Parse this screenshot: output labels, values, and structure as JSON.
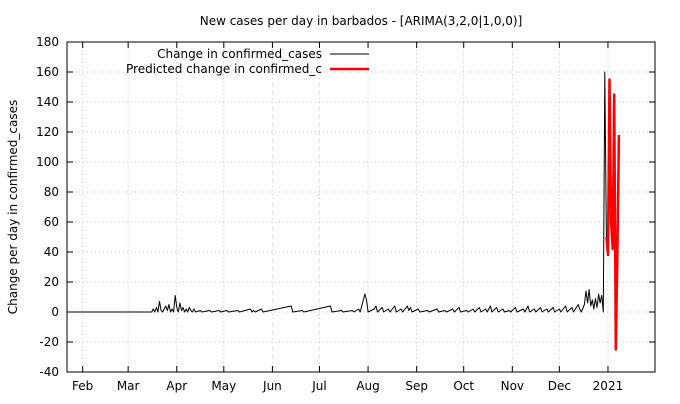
{
  "chart_data": {
    "type": "line",
    "title": "New cases per day in barbados -  [ARIMA(3,2,0|1,0,0)]",
    "xlabel": "",
    "ylabel": "Change per day in confirmed_cases",
    "ylim": [
      -40,
      180
    ],
    "yticks": [
      -40,
      -20,
      0,
      20,
      40,
      60,
      80,
      100,
      120,
      140,
      160,
      180
    ],
    "xlim": [
      "2020-01-22",
      "2021-01-31"
    ],
    "xticks": [
      {
        "label": "Feb",
        "date": "2020-02-01"
      },
      {
        "label": "Mar",
        "date": "2020-03-01"
      },
      {
        "label": "Apr",
        "date": "2020-04-01"
      },
      {
        "label": "May",
        "date": "2020-05-01"
      },
      {
        "label": "Jun",
        "date": "2020-06-01"
      },
      {
        "label": "Jul",
        "date": "2020-07-01"
      },
      {
        "label": "Aug",
        "date": "2020-08-01"
      },
      {
        "label": "Sep",
        "date": "2020-09-01"
      },
      {
        "label": "Oct",
        "date": "2020-10-01"
      },
      {
        "label": "Nov",
        "date": "2020-11-01"
      },
      {
        "label": "Dec",
        "date": "2020-12-01"
      },
      {
        "label": "2021",
        "date": "2021-01-01"
      }
    ],
    "grid": true,
    "legend_position": "top-left",
    "series": [
      {
        "name": "Change in confirmed_cases",
        "color": "#000000",
        "points": [
          [
            "2020-01-22",
            0
          ],
          [
            "2020-03-16",
            0
          ],
          [
            "2020-03-17",
            2
          ],
          [
            "2020-03-18",
            0
          ],
          [
            "2020-03-19",
            3
          ],
          [
            "2020-03-20",
            0
          ],
          [
            "2020-03-21",
            7
          ],
          [
            "2020-03-22",
            1
          ],
          [
            "2020-03-23",
            0
          ],
          [
            "2020-03-24",
            2
          ],
          [
            "2020-03-25",
            4
          ],
          [
            "2020-03-26",
            1
          ],
          [
            "2020-03-27",
            5
          ],
          [
            "2020-03-28",
            0
          ],
          [
            "2020-03-29",
            2
          ],
          [
            "2020-03-30",
            0
          ],
          [
            "2020-03-31",
            11
          ],
          [
            "2020-04-01",
            3
          ],
          [
            "2020-04-02",
            0
          ],
          [
            "2020-04-03",
            6
          ],
          [
            "2020-04-04",
            1
          ],
          [
            "2020-04-05",
            3
          ],
          [
            "2020-04-06",
            0
          ],
          [
            "2020-04-07",
            2
          ],
          [
            "2020-04-08",
            0
          ],
          [
            "2020-04-09",
            3
          ],
          [
            "2020-04-10",
            1
          ],
          [
            "2020-04-11",
            0
          ],
          [
            "2020-04-12",
            2
          ],
          [
            "2020-04-13",
            0
          ],
          [
            "2020-04-16",
            1
          ],
          [
            "2020-04-17",
            0
          ],
          [
            "2020-04-22",
            1
          ],
          [
            "2020-04-23",
            0
          ],
          [
            "2020-04-28",
            1
          ],
          [
            "2020-04-29",
            0
          ],
          [
            "2020-05-03",
            1
          ],
          [
            "2020-05-04",
            0
          ],
          [
            "2020-05-10",
            1
          ],
          [
            "2020-05-11",
            0
          ],
          [
            "2020-05-18",
            2
          ],
          [
            "2020-05-19",
            0
          ],
          [
            "2020-05-20",
            1
          ],
          [
            "2020-05-21",
            0
          ],
          [
            "2020-05-25",
            2
          ],
          [
            "2020-05-26",
            0
          ],
          [
            "2020-06-13",
            4
          ],
          [
            "2020-06-14",
            0
          ],
          [
            "2020-06-20",
            1
          ],
          [
            "2020-06-21",
            0
          ],
          [
            "2020-07-08",
            4
          ],
          [
            "2020-07-09",
            0
          ],
          [
            "2020-07-15",
            1
          ],
          [
            "2020-07-16",
            0
          ],
          [
            "2020-07-22",
            1
          ],
          [
            "2020-07-23",
            0
          ],
          [
            "2020-07-26",
            2
          ],
          [
            "2020-07-27",
            0
          ],
          [
            "2020-07-30",
            12
          ],
          [
            "2020-07-31",
            8
          ],
          [
            "2020-08-01",
            0
          ],
          [
            "2020-08-05",
            2
          ],
          [
            "2020-08-06",
            4
          ],
          [
            "2020-08-07",
            0
          ],
          [
            "2020-08-10",
            3
          ],
          [
            "2020-08-11",
            0
          ],
          [
            "2020-08-14",
            2
          ],
          [
            "2020-08-15",
            0
          ],
          [
            "2020-08-18",
            4
          ],
          [
            "2020-08-19",
            0
          ],
          [
            "2020-08-22",
            2
          ],
          [
            "2020-08-23",
            0
          ],
          [
            "2020-08-26",
            4
          ],
          [
            "2020-08-27",
            1
          ],
          [
            "2020-08-28",
            3
          ],
          [
            "2020-08-29",
            0
          ],
          [
            "2020-09-02",
            2
          ],
          [
            "2020-09-03",
            0
          ],
          [
            "2020-09-08",
            1
          ],
          [
            "2020-09-09",
            0
          ],
          [
            "2020-09-14",
            2
          ],
          [
            "2020-09-15",
            0
          ],
          [
            "2020-09-19",
            1
          ],
          [
            "2020-09-20",
            0
          ],
          [
            "2020-09-24",
            2
          ],
          [
            "2020-09-25",
            0
          ],
          [
            "2020-09-28",
            3
          ],
          [
            "2020-09-29",
            0
          ],
          [
            "2020-10-03",
            1
          ],
          [
            "2020-10-04",
            0
          ],
          [
            "2020-10-07",
            2
          ],
          [
            "2020-10-08",
            0
          ],
          [
            "2020-10-11",
            3
          ],
          [
            "2020-10-12",
            0
          ],
          [
            "2020-10-15",
            2
          ],
          [
            "2020-10-16",
            0
          ],
          [
            "2020-10-18",
            4
          ],
          [
            "2020-10-19",
            0
          ],
          [
            "2020-10-22",
            3
          ],
          [
            "2020-10-23",
            0
          ],
          [
            "2020-10-26",
            2
          ],
          [
            "2020-10-27",
            0
          ],
          [
            "2020-10-30",
            1
          ],
          [
            "2020-10-31",
            0
          ],
          [
            "2020-11-03",
            3
          ],
          [
            "2020-11-04",
            0
          ],
          [
            "2020-11-08",
            2
          ],
          [
            "2020-11-09",
            0
          ],
          [
            "2020-11-11",
            4
          ],
          [
            "2020-11-12",
            0
          ],
          [
            "2020-11-15",
            2
          ],
          [
            "2020-11-16",
            0
          ],
          [
            "2020-11-19",
            3
          ],
          [
            "2020-11-20",
            0
          ],
          [
            "2020-11-23",
            2
          ],
          [
            "2020-11-24",
            0
          ],
          [
            "2020-11-27",
            3
          ],
          [
            "2020-11-28",
            0
          ],
          [
            "2020-12-01",
            2
          ],
          [
            "2020-12-02",
            0
          ],
          [
            "2020-12-05",
            4
          ],
          [
            "2020-12-06",
            0
          ],
          [
            "2020-12-09",
            3
          ],
          [
            "2020-12-10",
            0
          ],
          [
            "2020-12-13",
            5
          ],
          [
            "2020-12-14",
            2
          ],
          [
            "2020-12-15",
            0
          ],
          [
            "2020-12-17",
            5
          ],
          [
            "2020-12-18",
            14
          ],
          [
            "2020-12-19",
            6
          ],
          [
            "2020-12-20",
            15
          ],
          [
            "2020-12-21",
            4
          ],
          [
            "2020-12-22",
            8
          ],
          [
            "2020-12-23",
            2
          ],
          [
            "2020-12-24",
            9
          ],
          [
            "2020-12-25",
            3
          ],
          [
            "2020-12-26",
            12
          ],
          [
            "2020-12-27",
            6
          ],
          [
            "2020-12-28",
            11
          ],
          [
            "2020-12-29",
            0
          ],
          [
            "2020-12-30",
            160
          ],
          [
            "2020-12-31",
            50
          ]
        ]
      },
      {
        "name": "Predicted change in confirmed_c",
        "color": "#ff0000",
        "points": [
          [
            "2020-12-31",
            50
          ],
          [
            "2021-01-01",
            38
          ],
          [
            "2021-01-02",
            155
          ],
          [
            "2021-01-03",
            60
          ],
          [
            "2021-01-04",
            42
          ],
          [
            "2021-01-05",
            145
          ],
          [
            "2021-01-06",
            -25
          ],
          [
            "2021-01-07",
            40
          ],
          [
            "2021-01-08",
            118
          ]
        ]
      }
    ]
  }
}
